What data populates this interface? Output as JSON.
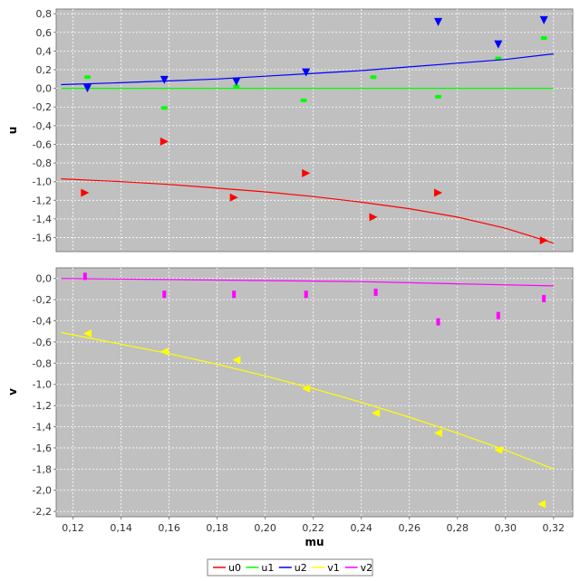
{
  "chart_data": {
    "type": "scatter",
    "xlabel": "mu",
    "xlim": [
      0.113,
      0.328
    ],
    "xticks": [
      0.12,
      0.14,
      0.16,
      0.18,
      0.2,
      0.22,
      0.24,
      0.26,
      0.28,
      0.3,
      0.32
    ],
    "xtick_labels": [
      "0,12",
      "0,14",
      "0,16",
      "0,18",
      "0,20",
      "0,22",
      "0,24",
      "0,26",
      "0,28",
      "0,30",
      "0,32"
    ],
    "grid": true,
    "background": "#c0c0c0",
    "legend": {
      "placement": "bottom-center",
      "entries": [
        {
          "name": "u0",
          "color": "#ff0000"
        },
        {
          "name": "u1",
          "color": "#00ff00"
        },
        {
          "name": "u2",
          "color": "#0000ff"
        },
        {
          "name": "v1",
          "color": "#ffff00"
        },
        {
          "name": "v2",
          "color": "#ff00ff"
        }
      ]
    },
    "panels": [
      {
        "ylabel": "u",
        "ylim": [
          -1.75,
          0.85
        ],
        "yticks": [
          -1.6,
          -1.4,
          -1.2,
          -1.0,
          -0.8,
          -0.6,
          -0.4,
          -0.2,
          0.0,
          0.2,
          0.4,
          0.6,
          0.8
        ],
        "ytick_labels": [
          "-1,6",
          "-1,4",
          "-1,2",
          "-1,0",
          "-0,8",
          "-0,6",
          "-0,4",
          "-0,2",
          "0,0",
          "0,2",
          "0,4",
          "0,6",
          "0,8"
        ],
        "series": [
          {
            "name": "u0",
            "color": "#ff0000",
            "marker": "triangle-right",
            "points": [
              [
                0.125,
                -1.12
              ],
              [
                0.158,
                -0.57
              ],
              [
                0.187,
                -1.17
              ],
              [
                0.217,
                -0.91
              ],
              [
                0.245,
                -1.38
              ],
              [
                0.272,
                -1.12
              ],
              [
                0.316,
                -1.63
              ]
            ],
            "curve": [
              [
                0.115,
                -0.97
              ],
              [
                0.14,
                -1.0
              ],
              [
                0.16,
                -1.03
              ],
              [
                0.18,
                -1.07
              ],
              [
                0.2,
                -1.11
              ],
              [
                0.22,
                -1.16
              ],
              [
                0.24,
                -1.22
              ],
              [
                0.26,
                -1.29
              ],
              [
                0.28,
                -1.38
              ],
              [
                0.3,
                -1.5
              ],
              [
                0.32,
                -1.66
              ]
            ]
          },
          {
            "name": "u1",
            "color": "#00ff00",
            "marker": "dash",
            "points": [
              [
                0.126,
                0.12
              ],
              [
                0.158,
                -0.21
              ],
              [
                0.188,
                0.02
              ],
              [
                0.216,
                -0.13
              ],
              [
                0.245,
                0.12
              ],
              [
                0.272,
                -0.09
              ],
              [
                0.297,
                0.32
              ],
              [
                0.316,
                0.54
              ]
            ],
            "curve": [
              [
                0.115,
                0.0
              ],
              [
                0.32,
                0.0
              ]
            ]
          },
          {
            "name": "u2",
            "color": "#0000ff",
            "marker": "triangle-down",
            "points": [
              [
                0.126,
                0.0
              ],
              [
                0.158,
                0.09
              ],
              [
                0.188,
                0.07
              ],
              [
                0.217,
                0.17
              ],
              [
                0.272,
                0.71
              ],
              [
                0.297,
                0.47
              ],
              [
                0.316,
                0.73
              ]
            ],
            "curve": [
              [
                0.115,
                0.04
              ],
              [
                0.14,
                0.06
              ],
              [
                0.16,
                0.08
              ],
              [
                0.18,
                0.1
              ],
              [
                0.2,
                0.13
              ],
              [
                0.22,
                0.16
              ],
              [
                0.24,
                0.19
              ],
              [
                0.26,
                0.23
              ],
              [
                0.28,
                0.27
              ],
              [
                0.3,
                0.31
              ],
              [
                0.32,
                0.37
              ]
            ]
          }
        ]
      },
      {
        "ylabel": "v",
        "ylim": [
          -2.25,
          0.1
        ],
        "yticks": [
          -2.2,
          -2.0,
          -1.8,
          -1.6,
          -1.4,
          -1.2,
          -1.0,
          -0.8,
          -0.6,
          -0.4,
          -0.2,
          0.0
        ],
        "ytick_labels": [
          "-2,2",
          "-2,0",
          "-1,8",
          "-1,6",
          "-1,4",
          "-1,2",
          "-1,0",
          "-0,8",
          "-0,6",
          "-0,4",
          "-0,2",
          "0,0"
        ],
        "series": [
          {
            "name": "v1",
            "color": "#ffff00",
            "marker": "triangle-left",
            "points": [
              [
                0.126,
                -0.52
              ],
              [
                0.158,
                -0.69
              ],
              [
                0.188,
                -0.77
              ],
              [
                0.217,
                -1.04
              ],
              [
                0.246,
                -1.27
              ],
              [
                0.272,
                -1.46
              ],
              [
                0.297,
                -1.62
              ],
              [
                0.315,
                -2.13
              ]
            ],
            "curve": [
              [
                0.115,
                -0.51
              ],
              [
                0.14,
                -0.62
              ],
              [
                0.16,
                -0.71
              ],
              [
                0.18,
                -0.81
              ],
              [
                0.2,
                -0.92
              ],
              [
                0.22,
                -1.04
              ],
              [
                0.24,
                -1.17
              ],
              [
                0.26,
                -1.31
              ],
              [
                0.28,
                -1.46
              ],
              [
                0.3,
                -1.62
              ],
              [
                0.32,
                -1.8
              ]
            ]
          },
          {
            "name": "v2",
            "color": "#ff00ff",
            "marker": "bar",
            "points": [
              [
                0.125,
                0.02
              ],
              [
                0.158,
                -0.15
              ],
              [
                0.187,
                -0.15
              ],
              [
                0.217,
                -0.15
              ],
              [
                0.246,
                -0.13
              ],
              [
                0.272,
                -0.41
              ],
              [
                0.297,
                -0.35
              ],
              [
                0.316,
                -0.19
              ]
            ],
            "curve": [
              [
                0.115,
                0.0
              ],
              [
                0.16,
                -0.01
              ],
              [
                0.2,
                -0.02
              ],
              [
                0.24,
                -0.03
              ],
              [
                0.28,
                -0.05
              ],
              [
                0.32,
                -0.07
              ]
            ]
          }
        ]
      }
    ]
  }
}
